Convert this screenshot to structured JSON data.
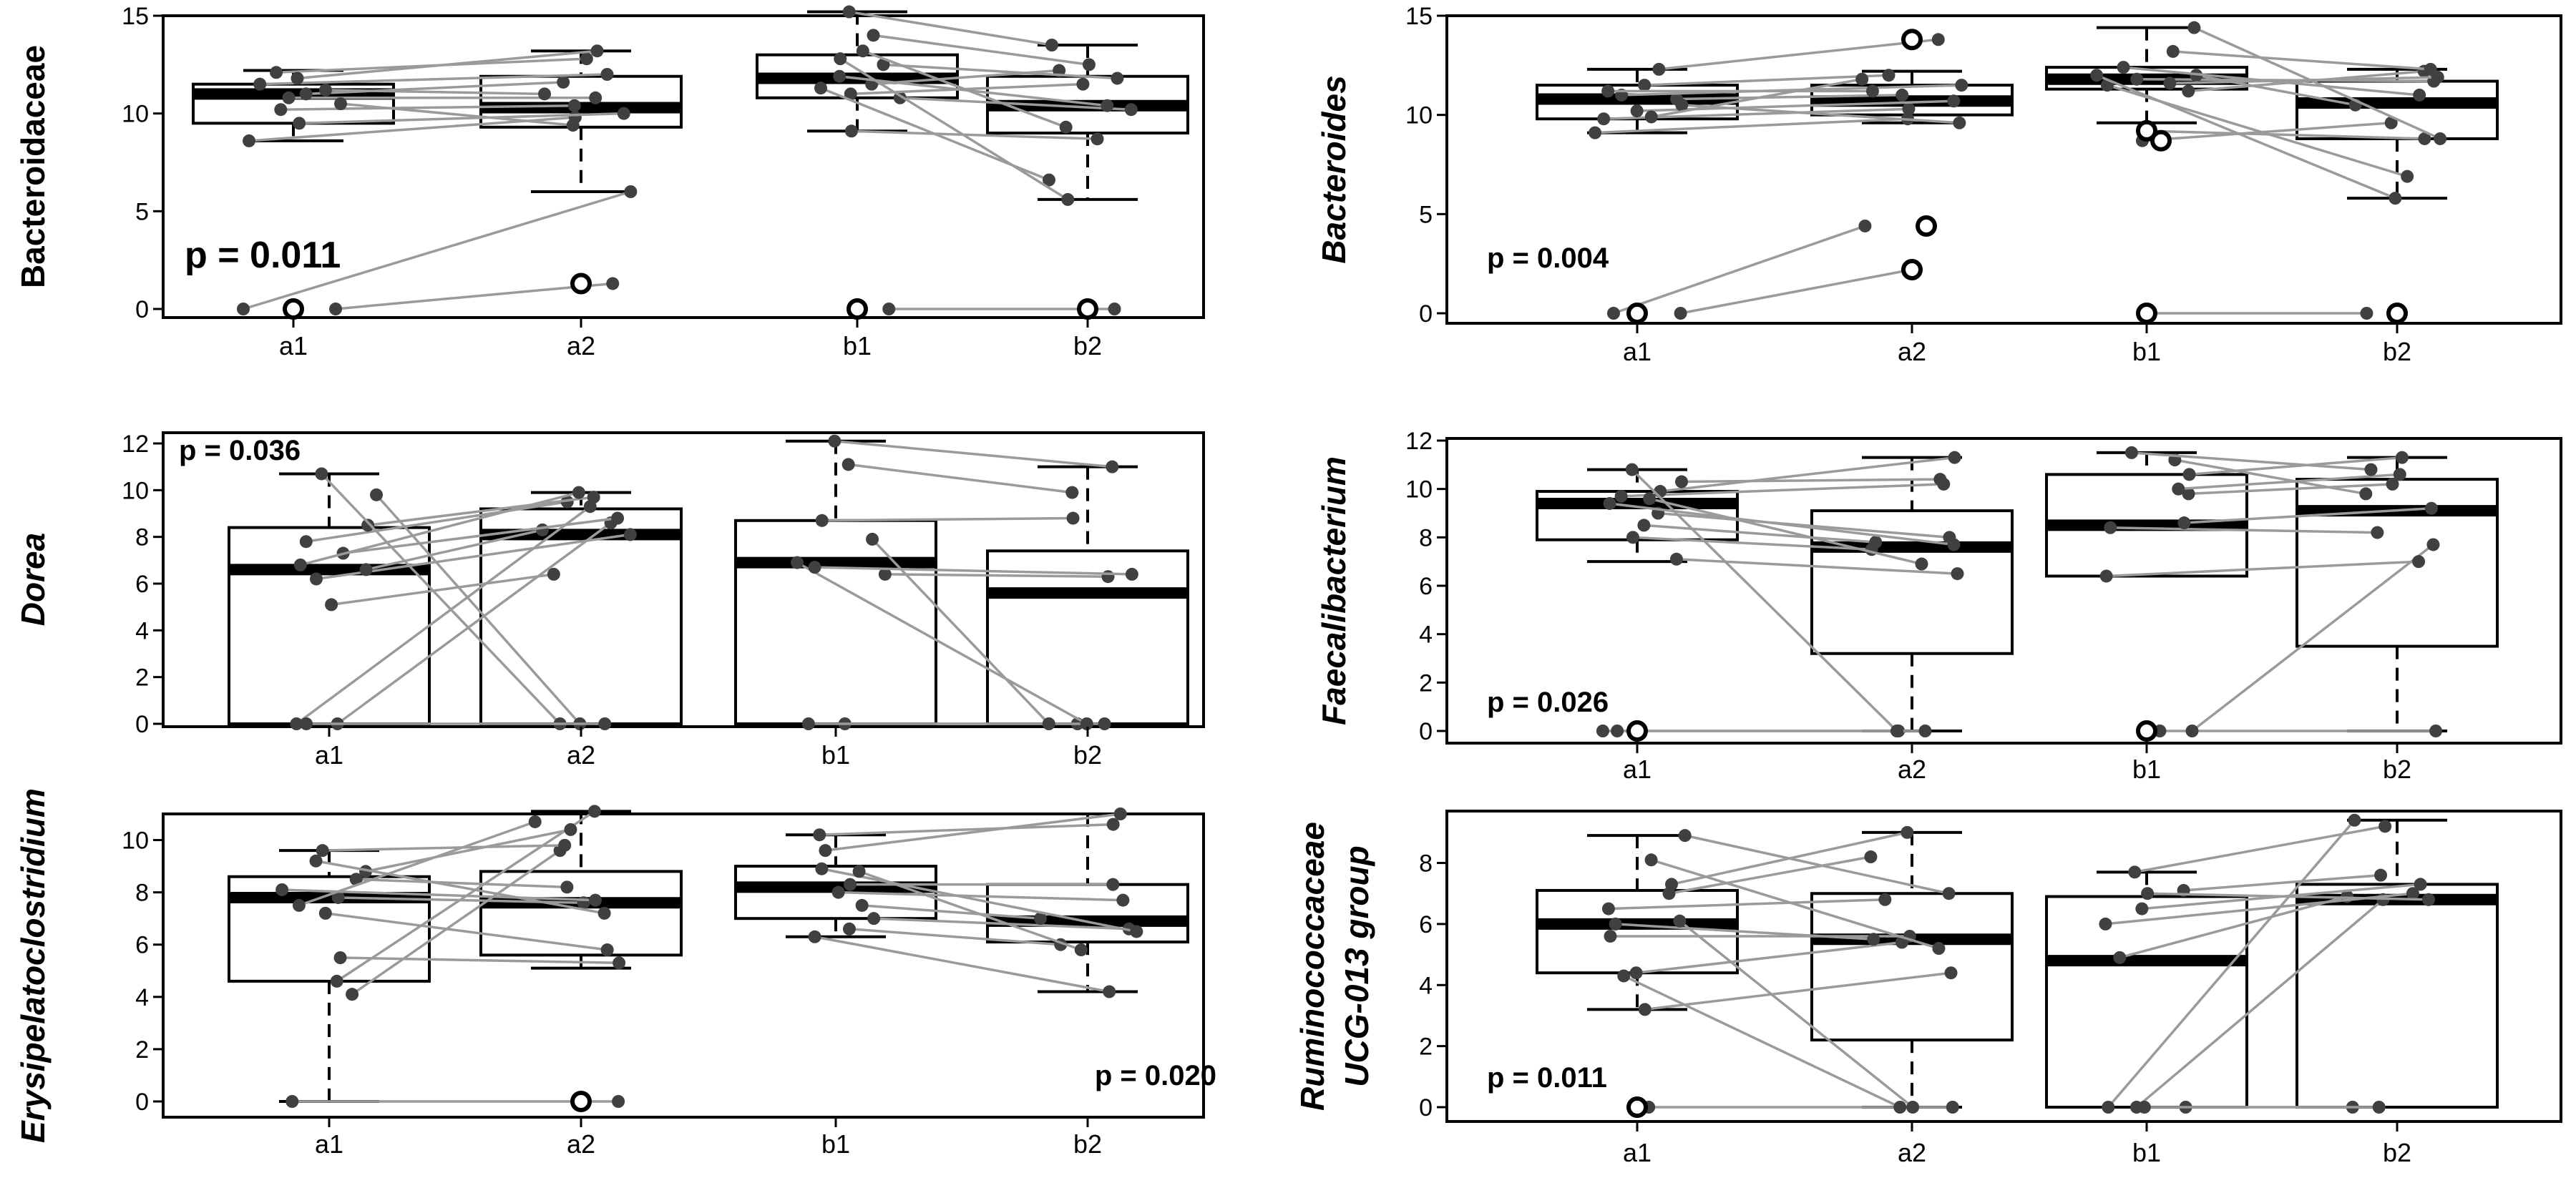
{
  "chart_data": [
    {
      "type": "boxplot",
      "ylabel": "Bacteroidaceae",
      "italic": false,
      "ylim": [
        0,
        15
      ],
      "yticks": [
        0,
        5,
        10,
        15
      ],
      "categories": [
        "a1",
        "a2",
        "b1",
        "b2"
      ],
      "pvalue": "p = 0.011",
      "boxes": [
        {
          "q1": 9.5,
          "median": 11.0,
          "q3": 11.5,
          "wlo": 8.6,
          "whi": 12.2,
          "outliers": [
            0
          ]
        },
        {
          "q1": 9.3,
          "median": 10.3,
          "q3": 11.9,
          "wlo": 6.0,
          "whi": 13.2,
          "outliers": [
            1.3
          ]
        },
        {
          "q1": 10.8,
          "median": 11.8,
          "q3": 13.0,
          "wlo": 9.1,
          "whi": 15.2,
          "outliers": [
            0
          ]
        },
        {
          "q1": 9.0,
          "median": 10.4,
          "q3": 11.9,
          "wlo": 5.6,
          "whi": 13.5,
          "outliers": [
            0
          ]
        }
      ],
      "pairs_a": [
        [
          0,
          6.0
        ],
        [
          0,
          1.3
        ],
        [
          8.6,
          9.8
        ],
        [
          9.5,
          10.0
        ],
        [
          10.2,
          10.4
        ],
        [
          10.8,
          10.8
        ],
        [
          11.0,
          11.6
        ],
        [
          11.5,
          12.0
        ],
        [
          12.1,
          12.8
        ],
        [
          11.8,
          13.2
        ],
        [
          10.5,
          9.4
        ],
        [
          11.2,
          11.0
        ]
      ],
      "pairs_b": [
        [
          0,
          0
        ],
        [
          9.1,
          8.7
        ],
        [
          10.8,
          10.2
        ],
        [
          11.0,
          11.5
        ],
        [
          11.5,
          12.2
        ],
        [
          11.9,
          10.4
        ],
        [
          12.5,
          11.8
        ],
        [
          13.2,
          9.3
        ],
        [
          14.0,
          12.5
        ],
        [
          15.2,
          13.5
        ],
        [
          11.3,
          6.6
        ],
        [
          12.8,
          5.6
        ]
      ]
    },
    {
      "type": "boxplot",
      "ylabel": "Bacteroides",
      "italic": true,
      "ylim": [
        0,
        15
      ],
      "yticks": [
        0,
        5,
        10,
        15
      ],
      "categories": [
        "a1",
        "a2",
        "b1",
        "b2"
      ],
      "pvalue": "p = 0.004",
      "boxes": [
        {
          "q1": 9.8,
          "median": 10.8,
          "q3": 11.5,
          "wlo": 9.1,
          "whi": 12.3,
          "outliers": [
            0
          ]
        },
        {
          "q1": 10.0,
          "median": 10.7,
          "q3": 11.5,
          "wlo": 9.6,
          "whi": 12.2,
          "outliers": [
            13.8,
            4.4,
            2.2
          ]
        },
        {
          "q1": 11.3,
          "median": 11.8,
          "q3": 12.4,
          "wlo": 9.6,
          "whi": 14.4,
          "outliers": [
            0,
            8.7,
            9.2
          ]
        },
        {
          "q1": 8.8,
          "median": 10.6,
          "q3": 11.7,
          "wlo": 5.8,
          "whi": 12.3,
          "outliers": [
            0
          ]
        }
      ],
      "pairs_a": [
        [
          0,
          4.4
        ],
        [
          0,
          2.2
        ],
        [
          9.1,
          9.8
        ],
        [
          9.8,
          10.3
        ],
        [
          10.2,
          10.7
        ],
        [
          10.8,
          11.0
        ],
        [
          11.0,
          11.5
        ],
        [
          11.5,
          12.0
        ],
        [
          12.3,
          13.8
        ],
        [
          10.5,
          9.6
        ],
        [
          11.2,
          11.2
        ],
        [
          9.9,
          11.8
        ]
      ],
      "pairs_b": [
        [
          0,
          0
        ],
        [
          8.7,
          9.6
        ],
        [
          9.2,
          8.8
        ],
        [
          11.2,
          12.2
        ],
        [
          11.8,
          11.7
        ],
        [
          12.0,
          10.5
        ],
        [
          12.4,
          11.0
        ],
        [
          13.2,
          12.3
        ],
        [
          14.4,
          8.8
        ],
        [
          11.5,
          6.9
        ],
        [
          12.0,
          5.8
        ],
        [
          11.6,
          11.9
        ]
      ]
    },
    {
      "type": "boxplot",
      "ylabel": "Dorea",
      "italic": true,
      "ylim": [
        0,
        12
      ],
      "yticks": [
        0,
        2,
        4,
        6,
        8,
        10,
        12
      ],
      "categories": [
        "a1",
        "a2",
        "b1",
        "b2"
      ],
      "pvalue": "p = 0.036",
      "boxes": [
        {
          "q1": 0.0,
          "median": 6.6,
          "q3": 8.4,
          "wlo": 0.0,
          "whi": 10.7,
          "outliers": []
        },
        {
          "q1": 0.0,
          "median": 8.1,
          "q3": 9.2,
          "wlo": 0.0,
          "whi": 9.9,
          "outliers": []
        },
        {
          "q1": 0.0,
          "median": 6.9,
          "q3": 8.7,
          "wlo": 0.0,
          "whi": 12.1,
          "outliers": []
        },
        {
          "q1": 0.0,
          "median": 5.6,
          "q3": 7.4,
          "wlo": 0.0,
          "whi": 11.0,
          "outliers": []
        }
      ],
      "pairs_a": [
        [
          0,
          8.6
        ],
        [
          0,
          9.3
        ],
        [
          5.1,
          6.4
        ],
        [
          6.2,
          8.1
        ],
        [
          6.6,
          8.3
        ],
        [
          7.3,
          8.8
        ],
        [
          7.8,
          9.5
        ],
        [
          8.5,
          9.7
        ],
        [
          9.8,
          0
        ],
        [
          10.7,
          0
        ],
        [
          0,
          0
        ],
        [
          6.8,
          9.9
        ]
      ],
      "pairs_b": [
        [
          0,
          0
        ],
        [
          0,
          0
        ],
        [
          6.4,
          6.3
        ],
        [
          6.9,
          0
        ],
        [
          7.9,
          0
        ],
        [
          8.7,
          8.8
        ],
        [
          11.1,
          9.9
        ],
        [
          12.1,
          11.0
        ],
        [
          6.7,
          6.4
        ]
      ]
    },
    {
      "type": "boxplot",
      "ylabel": "Faecalibacterium",
      "italic": true,
      "ylim": [
        0,
        12
      ],
      "yticks": [
        0,
        2,
        4,
        6,
        8,
        10,
        12
      ],
      "categories": [
        "a1",
        "a2",
        "b1",
        "b2"
      ],
      "pvalue": "p = 0.026",
      "boxes": [
        {
          "q1": 7.9,
          "median": 9.4,
          "q3": 9.9,
          "wlo": 7.0,
          "whi": 10.8,
          "outliers": [
            0
          ]
        },
        {
          "q1": 3.2,
          "median": 7.6,
          "q3": 9.1,
          "wlo": 0.0,
          "whi": 11.3,
          "outliers": []
        },
        {
          "q1": 6.4,
          "median": 8.5,
          "q3": 10.6,
          "wlo": 6.4,
          "whi": 11.5,
          "outliers": [
            0
          ]
        },
        {
          "q1": 3.5,
          "median": 9.1,
          "q3": 10.4,
          "wlo": 0.0,
          "whi": 11.3,
          "outliers": []
        }
      ],
      "pairs_a": [
        [
          0,
          0
        ],
        [
          0,
          0
        ],
        [
          7.1,
          6.5
        ],
        [
          8.0,
          7.5
        ],
        [
          8.5,
          7.8
        ],
        [
          9.0,
          8.0
        ],
        [
          9.4,
          7.7
        ],
        [
          9.7,
          10.2
        ],
        [
          9.9,
          11.3
        ],
        [
          10.3,
          10.4
        ],
        [
          10.8,
          0
        ],
        [
          9.6,
          6.9
        ]
      ],
      "pairs_b": [
        [
          0,
          0
        ],
        [
          0,
          7.7
        ],
        [
          6.4,
          7.0
        ],
        [
          8.4,
          8.2
        ],
        [
          8.6,
          9.2
        ],
        [
          9.8,
          10.2
        ],
        [
          10.0,
          10.6
        ],
        [
          10.6,
          11.3
        ],
        [
          11.2,
          9.8
        ],
        [
          11.5,
          10.8
        ]
      ]
    },
    {
      "type": "boxplot",
      "ylabel": "Erysipelatoclostridium",
      "italic": true,
      "ylim": [
        0,
        11
      ],
      "yticks": [
        0,
        2,
        4,
        6,
        8,
        10
      ],
      "categories": [
        "a1",
        "a2",
        "b1",
        "b2"
      ],
      "pvalue": "p = 0.020",
      "boxes": [
        {
          "q1": 4.6,
          "median": 7.8,
          "q3": 8.6,
          "wlo": 0.0,
          "whi": 9.6,
          "outliers": []
        },
        {
          "q1": 5.6,
          "median": 7.6,
          "q3": 8.8,
          "wlo": 5.1,
          "whi": 11.1,
          "outliers": [
            0
          ]
        },
        {
          "q1": 7.0,
          "median": 8.2,
          "q3": 9.0,
          "wlo": 6.3,
          "whi": 10.2,
          "outliers": []
        },
        {
          "q1": 6.1,
          "median": 6.9,
          "q3": 8.3,
          "wlo": 4.2,
          "whi": 11.0,
          "outliers": []
        }
      ],
      "pairs_a": [
        [
          0,
          0
        ],
        [
          4.1,
          9.6
        ],
        [
          4.6,
          11.1
        ],
        [
          5.5,
          5.3
        ],
        [
          7.2,
          5.8
        ],
        [
          7.8,
          7.6
        ],
        [
          8.1,
          7.7
        ],
        [
          8.5,
          8.2
        ],
        [
          8.8,
          10.4
        ],
        [
          9.6,
          9.8
        ],
        [
          9.2,
          7.2
        ],
        [
          7.5,
          10.7
        ]
      ],
      "pairs_b": [
        [
          6.3,
          4.2
        ],
        [
          6.6,
          6.0
        ],
        [
          7.0,
          6.6
        ],
        [
          7.5,
          7.0
        ],
        [
          8.0,
          7.7
        ],
        [
          8.3,
          8.3
        ],
        [
          8.9,
          6.5
        ],
        [
          9.6,
          11.0
        ],
        [
          10.2,
          10.6
        ],
        [
          8.8,
          5.8
        ]
      ]
    },
    {
      "type": "boxplot",
      "ylabel": "Ruminococcaceae UCG-013 group",
      "ylabel_lines": [
        "Ruminococcaceae",
        "UCG-013 group"
      ],
      "italic": true,
      "ylim": [
        0,
        9.7
      ],
      "yticks": [
        0,
        2,
        4,
        6,
        8
      ],
      "categories": [
        "a1",
        "a2",
        "b1",
        "b2"
      ],
      "pvalue": "p = 0.011",
      "boxes": [
        {
          "q1": 4.4,
          "median": 6.0,
          "q3": 7.1,
          "wlo": 3.2,
          "whi": 8.9,
          "outliers": [
            0
          ]
        },
        {
          "q1": 2.2,
          "median": 5.5,
          "q3": 7.0,
          "wlo": 0.0,
          "whi": 9.0,
          "outliers": []
        },
        {
          "q1": 0.0,
          "median": 4.8,
          "q3": 6.9,
          "wlo": 0.0,
          "whi": 7.7,
          "outliers": []
        },
        {
          "q1": 0.0,
          "median": 6.8,
          "q3": 7.3,
          "wlo": 0.0,
          "whi": 9.4,
          "outliers": []
        }
      ],
      "pairs_a": [
        [
          0,
          0
        ],
        [
          3.2,
          4.4
        ],
        [
          4.4,
          5.4
        ],
        [
          5.6,
          5.6
        ],
        [
          6.0,
          5.5
        ],
        [
          6.5,
          6.8
        ],
        [
          7.0,
          8.2
        ],
        [
          7.3,
          9.0
        ],
        [
          8.9,
          7.0
        ],
        [
          4.3,
          0
        ],
        [
          6.1,
          0
        ],
        [
          8.1,
          5.2
        ]
      ],
      "pairs_b": [
        [
          0,
          0
        ],
        [
          0,
          6.8
        ],
        [
          0,
          0
        ],
        [
          0,
          9.4
        ],
        [
          4.9,
          6.9
        ],
        [
          6.0,
          7.0
        ],
        [
          6.5,
          7.3
        ],
        [
          7.1,
          7.6
        ],
        [
          7.7,
          9.2
        ],
        [
          7.0,
          6.8
        ]
      ]
    }
  ]
}
